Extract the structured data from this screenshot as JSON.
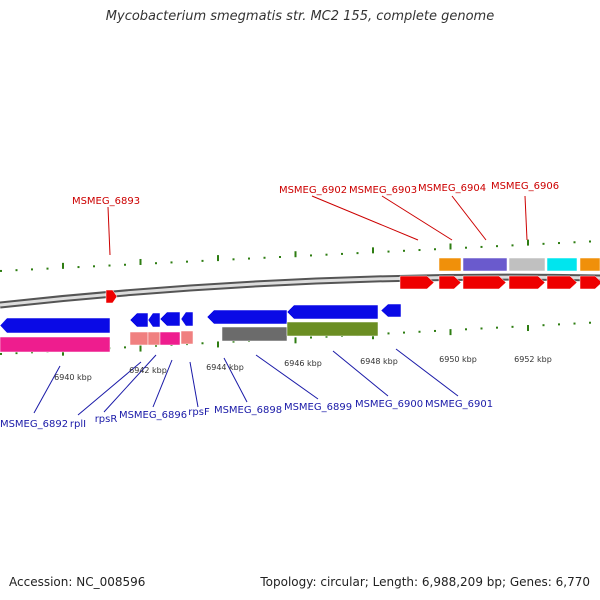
{
  "title": "Mycobacterium smegmatis str. MC2 155, complete genome",
  "accession": "Accession: NC_008596",
  "topology": "Topology: circular; Length: 6,988,209 bp; Genes: 6,770",
  "scale_labels": [
    "6940 kbp",
    "6942 kbp",
    "6944 kbp",
    "6946 kbp",
    "6948 kbp",
    "6950 kbp",
    "6952 kbp"
  ],
  "top_labels": [
    "MSMEG_6893",
    "MSMEG_6902",
    "MSMEG_6903",
    "MSMEG_6904",
    "MSMEG_6906"
  ],
  "bottom_labels": [
    "MSMEG_6892",
    "rplI",
    "rpsR",
    "MSMEG_6896",
    "rpsF",
    "MSMEG_6898",
    "MSMEG_6899",
    "MSMEG_6900",
    "MSMEG_6901"
  ],
  "colors": {
    "forward_gene": "#ee0000",
    "reverse_gene": "#0a0ae6",
    "reverse_cds": "#ee1d8e",
    "rrna_like": "#f08080",
    "backbone": "#888888",
    "tick": "#2e7d12",
    "orange": "#f0900a",
    "slate": "#6a5acd",
    "silver": "#c0c0c0",
    "cyan": "#00e5ee",
    "dimgray": "#6b6b6b",
    "olive": "#6b8e23"
  }
}
